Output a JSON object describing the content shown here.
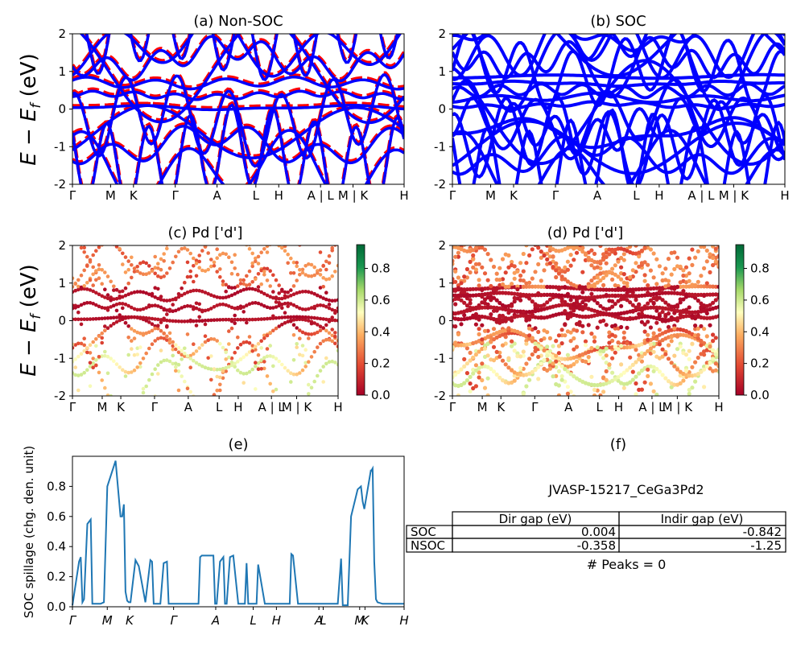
{
  "figure": {
    "title": "JVASP-15217_CeGa3Pd2"
  },
  "band_panels": {
    "titles": [
      "(a) Non-SOC",
      "(b) SOC",
      "(c)  Pd ['d']",
      "(d) Pd ['d']"
    ],
    "ylabel": "E − E",
    "ylabel_sub": "f",
    "ylabel_unit": " (eV)",
    "kpath_labels": [
      "Γ",
      "M",
      "K",
      "Γ",
      "A",
      "L",
      "H",
      "A | L",
      "M | K",
      "H"
    ],
    "colorbar_ticks": [
      "0.0",
      "0.2",
      "0.4",
      "0.6",
      "0.8"
    ]
  },
  "spillage_panel": {
    "title": "(e)",
    "ylabel": "SOC spillage (chg. den. unit)",
    "kpath_labels": [
      "Γ",
      "M",
      "K",
      "Γ",
      "A",
      "L",
      "H",
      "A",
      "L",
      "M",
      "K",
      "H"
    ]
  },
  "table_panel": {
    "title": "(f)",
    "headers": [
      "Dir gap (eV)",
      "Indir gap (eV)"
    ],
    "rows": [
      {
        "label": "SOC",
        "dir": "0.004",
        "indir": "-0.842"
      },
      {
        "label": "NSOC",
        "dir": "-0.358",
        "indir": "-1.25"
      }
    ],
    "peaks": "# Peaks = 0"
  },
  "chart_data": [
    {
      "type": "line",
      "title": "(a) Non-SOC",
      "ylim": [
        -2,
        2
      ],
      "yticks": [
        -2,
        -1,
        0,
        1,
        2
      ],
      "x_ticks": [
        "Γ",
        "M",
        "K",
        "Γ",
        "A",
        "L",
        "H",
        "A | L",
        "M | K",
        "H"
      ],
      "series": [
        {
          "color": "#0000ff",
          "style": "solid",
          "values": [
            [
              0,
              0.55
            ],
            [
              0.5,
              0.6
            ],
            [
              1,
              0.5
            ]
          ]
        },
        {
          "color": "#ff0000",
          "style": "dashed",
          "values": [
            [
              0,
              0.95
            ],
            [
              0.5,
              0.7
            ],
            [
              1,
              1.0
            ]
          ]
        }
      ]
    },
    {
      "type": "line",
      "title": "(b) SOC",
      "ylim": [
        -2,
        2
      ],
      "yticks": [
        -2,
        -1,
        0,
        1,
        2
      ]
    },
    {
      "type": "scatter",
      "title": "(c)  Pd ['d']",
      "ylim": [
        -2,
        2
      ],
      "yticks": [
        -2,
        -1,
        0,
        1,
        2
      ],
      "colorbar": [
        0.0,
        0.9
      ]
    },
    {
      "type": "scatter",
      "title": "(d) Pd ['d']",
      "ylim": [
        -2,
        2
      ],
      "yticks": [
        -2,
        -1,
        0,
        1,
        2
      ],
      "colorbar": [
        0.0,
        0.9
      ]
    },
    {
      "type": "line",
      "title": "(e)",
      "ylabel": "SOC spillage (chg. den. unit)",
      "ylim": [
        0,
        1.0
      ],
      "yticks": [
        0.0,
        0.2,
        0.4,
        0.6,
        0.8
      ],
      "x": [
        0,
        0.02,
        0.025,
        0.03,
        0.035,
        0.045,
        0.055,
        0.06,
        0.065,
        0.075,
        0.085,
        0.095,
        0.105,
        0.13,
        0.145,
        0.15,
        0.155,
        0.16,
        0.165,
        0.17,
        0.175,
        0.19,
        0.2,
        0.22,
        0.235,
        0.24,
        0.245,
        0.255,
        0.26,
        0.265,
        0.275,
        0.285,
        0.29,
        0.295,
        0.31,
        0.33,
        0.38,
        0.385,
        0.39,
        0.395,
        0.425,
        0.43,
        0.435,
        0.445,
        0.455,
        0.46,
        0.465,
        0.475,
        0.485,
        0.5,
        0.52,
        0.525,
        0.53,
        0.55,
        0.555,
        0.56,
        0.58,
        0.6,
        0.63,
        0.635,
        0.64,
        0.655,
        0.66,
        0.665,
        0.68,
        0.7,
        0.72,
        0.74,
        0.76,
        0.78,
        0.8,
        0.81,
        0.815,
        0.82,
        0.83,
        0.84,
        0.86,
        0.87,
        0.875,
        0.88,
        0.9,
        0.9,
        0.905,
        0.91,
        0.915,
        0.92,
        0.935,
        0.94,
        0.955,
        0.96,
        0.965,
        0.97,
        0.98,
        0.99,
        1.0
      ],
      "values": [
        0.01,
        0.3,
        0.33,
        0.03,
        0.05,
        0.55,
        0.58,
        0.02,
        0.02,
        0.02,
        0.02,
        0.03,
        0.8,
        0.97,
        0.6,
        0.6,
        0.68,
        0.1,
        0.04,
        0.03,
        0.03,
        0.31,
        0.27,
        0.03,
        0.31,
        0.3,
        0.02,
        0.02,
        0.02,
        0.02,
        0.29,
        0.3,
        0.02,
        0.02,
        0.02,
        0.02,
        0.02,
        0.33,
        0.34,
        0.34,
        0.34,
        0.02,
        0.02,
        0.3,
        0.33,
        0.02,
        0.02,
        0.33,
        0.34,
        0.02,
        0.02,
        0.29,
        0.02,
        0.02,
        0.02,
        0.28,
        0.02,
        0.02,
        0.02,
        0.02,
        0.02,
        0.02,
        0.35,
        0.34,
        0.02,
        0.02,
        0.02,
        0.02,
        0.02,
        0.02,
        0.02,
        0.32,
        0.01,
        0.01,
        0.01,
        0.6,
        0.78,
        0.8,
        0.7,
        0.65,
        0.91,
        0.9,
        0.92,
        0.3,
        0.05,
        0.03,
        0.02,
        0.02,
        0.02,
        0.02,
        0.02,
        0.02,
        0.02,
        0.02,
        0.02
      ]
    }
  ]
}
